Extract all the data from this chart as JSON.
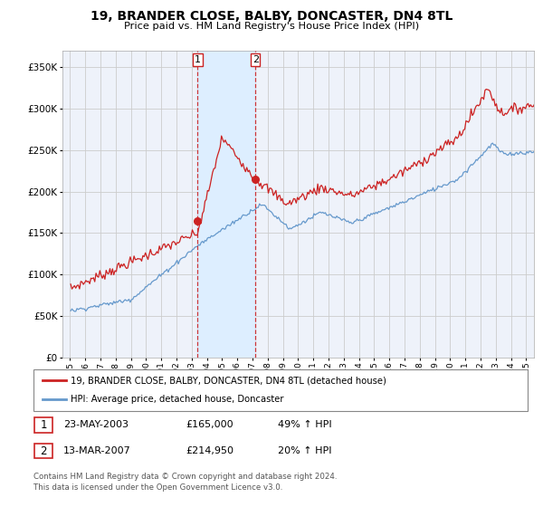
{
  "title": "19, BRANDER CLOSE, BALBY, DONCASTER, DN4 8TL",
  "subtitle": "Price paid vs. HM Land Registry's House Price Index (HPI)",
  "legend_line1": "19, BRANDER CLOSE, BALBY, DONCASTER, DN4 8TL (detached house)",
  "legend_line2": "HPI: Average price, detached house, Doncaster",
  "transaction1_date": "23-MAY-2003",
  "transaction1_price": "£165,000",
  "transaction1_hpi": "49% ↑ HPI",
  "transaction2_date": "13-MAR-2007",
  "transaction2_price": "£214,950",
  "transaction2_hpi": "20% ↑ HPI",
  "footer": "Contains HM Land Registry data © Crown copyright and database right 2024.\nThis data is licensed under the Open Government Licence v3.0.",
  "red_color": "#cc2222",
  "blue_color": "#6699cc",
  "shade_color": "#ddeeff",
  "background_color": "#ffffff",
  "plot_bg_color": "#eef2fa",
  "grid_color": "#cccccc",
  "marker1_x": 2003.39,
  "marker2_x": 2007.19,
  "marker1_y": 165000,
  "marker2_y": 214950,
  "ylim_min": 0,
  "ylim_max": 370000,
  "xlim_min": 1994.5,
  "xlim_max": 2025.5,
  "yticks": [
    0,
    50000,
    100000,
    150000,
    200000,
    250000,
    300000,
    350000
  ],
  "xtick_years": [
    1995,
    1996,
    1997,
    1998,
    1999,
    2000,
    2001,
    2002,
    2003,
    2004,
    2005,
    2006,
    2007,
    2008,
    2009,
    2010,
    2011,
    2012,
    2013,
    2014,
    2015,
    2016,
    2017,
    2018,
    2019,
    2020,
    2021,
    2022,
    2023,
    2024,
    2025
  ]
}
